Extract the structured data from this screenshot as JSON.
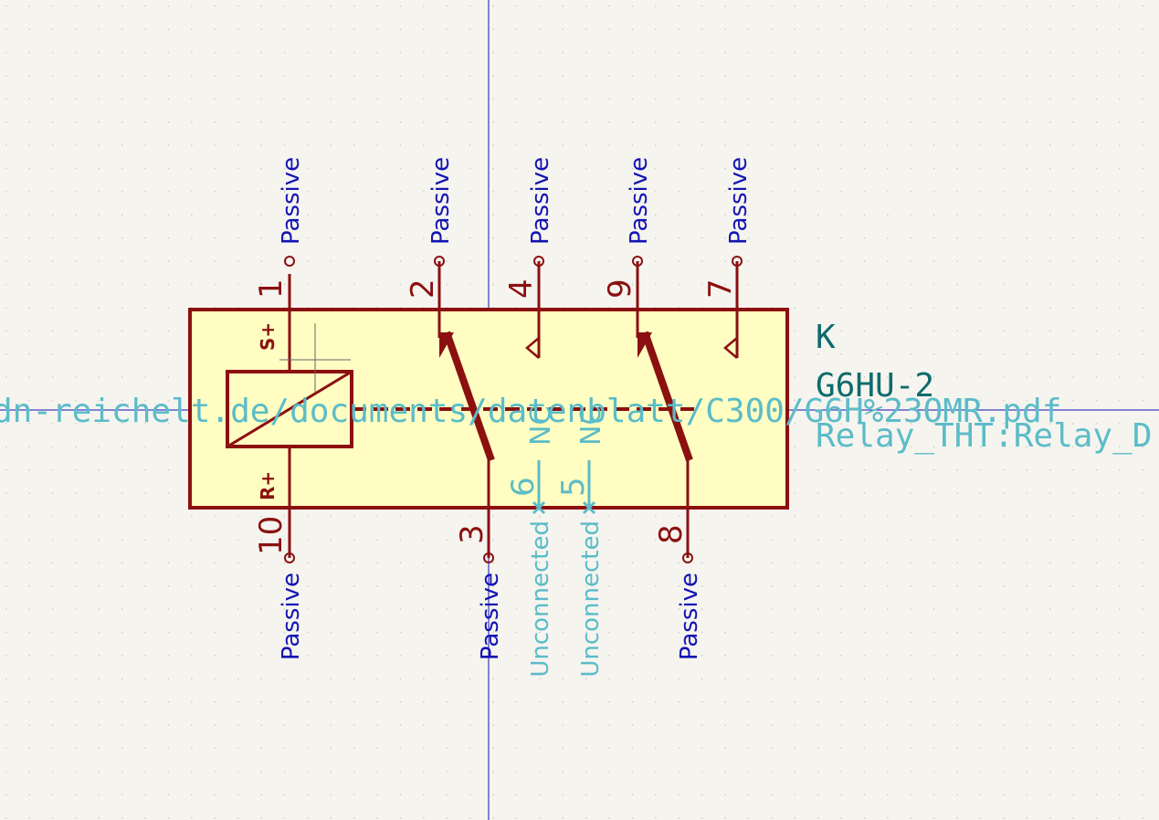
{
  "symbol": {
    "reference": "K",
    "value": "G6HU-2",
    "footprint": "Relay_THT:Relay_D",
    "datasheet": "dn-reichelt.de/documents/datenblatt/C300/G6H%23OMR.pdf",
    "coil_pin_names": {
      "top": "S+",
      "bottom": "R+"
    }
  },
  "pins": [
    {
      "number": "1",
      "type": "Passive"
    },
    {
      "number": "2",
      "type": "Passive"
    },
    {
      "number": "4",
      "type": "Passive"
    },
    {
      "number": "9",
      "type": "Passive"
    },
    {
      "number": "7",
      "type": "Passive"
    },
    {
      "number": "10",
      "type": "Passive"
    },
    {
      "number": "3",
      "type": "Passive"
    },
    {
      "number": "6",
      "type": "Unconnected",
      "name": "NC"
    },
    {
      "number": "5",
      "type": "Unconnected",
      "name": "NC"
    },
    {
      "number": "8",
      "type": "Passive"
    }
  ],
  "colors": {
    "background": "#f5f4ef",
    "body_fill": "#fffdc2",
    "body_stroke": "#8b1010",
    "pin_type": "#1414b4",
    "unconnected": "#5bbcc8",
    "reference": "#0e6b6b",
    "crosshair": "#1414b4"
  }
}
